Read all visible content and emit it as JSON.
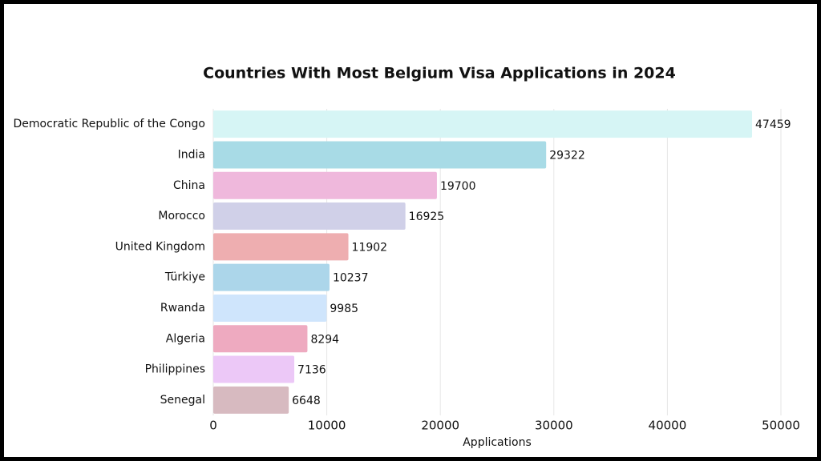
{
  "chart_data": {
    "type": "bar",
    "orientation": "horizontal",
    "title": "Countries With Most Belgium Visa Applications in 2024",
    "x_label": "Applications",
    "categories": [
      "Democratic Republic of the Congo",
      "India",
      "China",
      "Morocco",
      "United Kingdom",
      "Türkiye",
      "Rwanda",
      "Algeria",
      "Philippines",
      "Senegal"
    ],
    "values": [
      47459,
      29322,
      19700,
      16925,
      11902,
      10237,
      9985,
      8294,
      7136,
      6648
    ],
    "colors": [
      "#d6f5f5",
      "#a8dbe6",
      "#efb8dc",
      "#d0d0e8",
      "#eeaeb0",
      "#acd6ea",
      "#cfe5fc",
      "#eeaac0",
      "#ecc8f7",
      "#d7bac0"
    ],
    "xlim": [
      0,
      50000
    ],
    "xticks": [
      0,
      10000,
      20000,
      30000,
      40000,
      50000
    ],
    "grid": true
  }
}
